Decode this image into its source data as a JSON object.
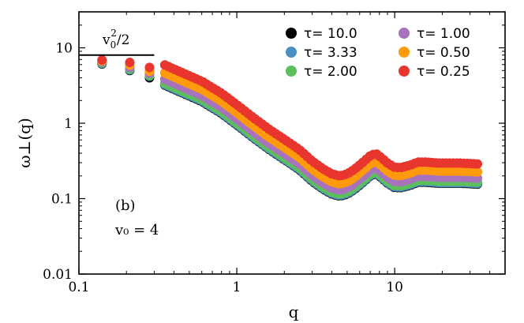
{
  "chart_data": {
    "type": "scatter",
    "xlabel": "q",
    "ylabel": "ω⊥(q)",
    "xscale": "log",
    "yscale": "log",
    "xlim": [
      0.1,
      50
    ],
    "ylim": [
      0.01,
      30
    ],
    "xticks": [
      {
        "value": 0.1,
        "label": "0.1"
      },
      {
        "value": 1,
        "label": "1"
      },
      {
        "value": 10,
        "label": "10"
      }
    ],
    "yticks": [
      {
        "value": 0.01,
        "label": "0.01"
      },
      {
        "value": 0.1,
        "label": "0.1"
      },
      {
        "value": 1,
        "label": "1"
      },
      {
        "value": 10,
        "label": "10"
      }
    ],
    "grid": false,
    "legend_position": "top-right",
    "annotations": {
      "panel_label": "(b)",
      "v0_text": "v₀ = 4",
      "hline_label_base": "v",
      "hline_label_sub": "0",
      "hline_label_sup": "2",
      "hline_label_tail": "/2",
      "hline": {
        "value": 8,
        "x_from": 0.1,
        "x_to": 0.3
      }
    },
    "base_curve": [
      [
        0.14,
        6.3
      ],
      [
        0.21,
        5.1
      ],
      [
        0.28,
        4.2
      ],
      [
        0.35,
        3.2
      ],
      [
        0.42,
        2.7
      ],
      [
        0.5,
        2.3
      ],
      [
        0.6,
        1.95
      ],
      [
        0.7,
        1.6
      ],
      [
        0.8,
        1.35
      ],
      [
        1.0,
        0.95
      ],
      [
        1.3,
        0.62
      ],
      [
        1.6,
        0.45
      ],
      [
        2.0,
        0.33
      ],
      [
        2.5,
        0.24
      ],
      [
        3.0,
        0.17
      ],
      [
        3.5,
        0.135
      ],
      [
        4.0,
        0.115
      ],
      [
        4.5,
        0.108
      ],
      [
        5.0,
        0.115
      ],
      [
        5.5,
        0.13
      ],
      [
        6.2,
        0.16
      ],
      [
        7.0,
        0.2
      ],
      [
        7.6,
        0.215
      ],
      [
        8.2,
        0.19
      ],
      [
        9.0,
        0.16
      ],
      [
        10.0,
        0.14
      ],
      [
        11.0,
        0.14
      ],
      [
        12.5,
        0.15
      ],
      [
        14.0,
        0.165
      ],
      [
        16.0,
        0.165
      ],
      [
        19.0,
        0.16
      ],
      [
        22.0,
        0.16
      ],
      [
        26.0,
        0.16
      ],
      [
        30.0,
        0.158
      ],
      [
        35.0,
        0.155
      ]
    ],
    "series": [
      {
        "name": "τ= 10.0",
        "color": "#000000",
        "multiplier": 1.0
      },
      {
        "name": "τ= 3.33",
        "color": "#4a8fc4",
        "multiplier": 1.02
      },
      {
        "name": "τ= 2.00",
        "color": "#5cbf5c",
        "multiplier": 1.06
      },
      {
        "name": "τ= 1.00",
        "color": "#a872bd",
        "multiplier": 1.2
      },
      {
        "name": "τ= 0.50",
        "color": "#ff9a0d",
        "multiplier": 1.45
      },
      {
        "name": "τ= 0.25",
        "color": "#e8362e",
        "multiplier": 1.85
      }
    ],
    "early_points": {
      "x": [
        0.14,
        0.21,
        0.28
      ],
      "y_by_series": [
        [
          6.1,
          5.0,
          4.0
        ],
        [
          6.2,
          5.1,
          4.2
        ],
        [
          6.3,
          5.2,
          4.3
        ],
        [
          6.5,
          5.5,
          4.6
        ],
        [
          6.7,
          5.9,
          4.9
        ],
        [
          6.9,
          6.4,
          5.5
        ]
      ]
    }
  }
}
